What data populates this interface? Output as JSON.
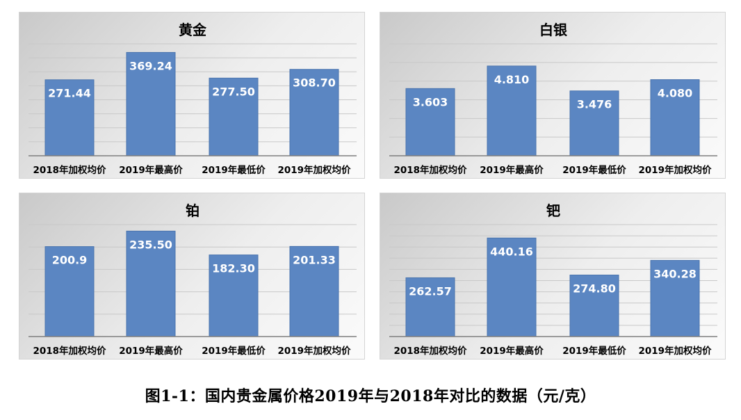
{
  "caption": "图1-1：国内贵金属价格2019年与2018年对比的数据（元/克）",
  "colors": {
    "bar": "#5b86c2",
    "bar_edge": "#4a74ae",
    "grid": "#c8c8c8",
    "axis": "#7f7f7f"
  },
  "chart_data": [
    {
      "type": "bar",
      "title": "黄金",
      "categories": [
        "2018年加权均价",
        "2019年最高价",
        "2019年最低价",
        "2019年加权均价"
      ],
      "values": [
        271.44,
        369.24,
        277.5,
        308.7
      ],
      "value_labels": [
        "271.44",
        "369.24",
        "277.50",
        "308.70"
      ],
      "ylim": [
        0,
        400
      ],
      "grid": true,
      "gridlines": 8
    },
    {
      "type": "bar",
      "title": "白银",
      "categories": [
        "2018年加权均价",
        "2019年最高价",
        "2019年最低价",
        "2019年加权均价"
      ],
      "values": [
        3.603,
        4.81,
        3.476,
        4.08
      ],
      "value_labels": [
        "3.603",
        "4.810",
        "3.476",
        "4.080"
      ],
      "ylim": [
        0,
        6
      ],
      "grid": true,
      "gridlines": 6
    },
    {
      "type": "bar",
      "title": "铂",
      "categories": [
        "2018年加权均价",
        "2019年最高价",
        "2019年最低价",
        "2019年加权均价"
      ],
      "values": [
        200.9,
        235.5,
        182.3,
        201.33
      ],
      "value_labels": [
        "200.9",
        "235.50",
        "182.30",
        "201.33"
      ],
      "ylim": [
        0,
        250
      ],
      "grid": true,
      "gridlines": 5
    },
    {
      "type": "bar",
      "title": "钯",
      "categories": [
        "2018年加权均价",
        "2019年最高价",
        "2019年最低价",
        "2019年加权均价"
      ],
      "values": [
        262.57,
        440.16,
        274.8,
        340.28
      ],
      "value_labels": [
        "262.57",
        "440.16",
        "274.80",
        "340.28"
      ],
      "ylim": [
        0,
        500
      ],
      "grid": true,
      "gridlines": 10
    }
  ]
}
